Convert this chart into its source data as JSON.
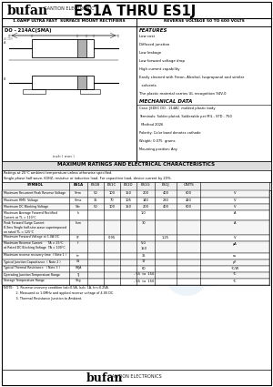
{
  "title_bufan": "bufan",
  "title_gantion": "GANTION ELECTRONIC",
  "title_model": "ES1A THRU ES1J",
  "subtitle_left": "1.0AMP ULTRA FAST  SURFACE MOUNT RECTIFIERS",
  "subtitle_right": "REVERSE VOLTAGE 50 TO 600 VOLTS",
  "package": "DO - 214AC(SMA)",
  "features_title": "FEATURES",
  "features": [
    "Low cost",
    "Diffused junction",
    "Low leakage",
    "Low forward voltage drop",
    "High current capability",
    "Easily cleaned with Freon, Alcohol, Isopropanol and similar",
    "  solvents",
    "The plastic material carries UL recognition 94V-0"
  ],
  "mech_title": "MECHANICAL DATA",
  "mech": [
    "Case: JEDEC DO - 214AC  molded plastic body",
    "Terminals: Solder plated, Solderable per MIL - STD - 750",
    "  Method 2026",
    "Polarity: Color band denotes cathode",
    "Weight: 0.075  grams",
    "Mounting position: Any"
  ],
  "table_title": "MAXIMUM RATINGS AND ELECTRICAL CHARACTERISTICS",
  "table_note1": "Ratings at 25°C ambient temperature unless otherwise specified.",
  "table_note2": "Single phase half wave, 60HZ, resistive or inductive load. For capacitive load, device current by 20%.",
  "col_headers": [
    "SYMBOL",
    "ES1A",
    "ES1B",
    "ES1C",
    "ES1D",
    "ES1G",
    "ES1J",
    "UNITS"
  ],
  "rows": [
    [
      "Maximum Recurrent Peak Reverse Voltage",
      "Vrrm",
      "50",
      "100",
      "150",
      "200",
      "400",
      "600",
      "V"
    ],
    [
      "Maximum RMS  Voltage",
      "Vrms",
      "35",
      "70",
      "105",
      "140",
      "280",
      "420",
      "V"
    ],
    [
      "Maximum DC Blocking Voltage",
      "Vdc",
      "50",
      "100",
      "150",
      "200",
      "400",
      "600",
      "V"
    ],
    [
      "Maximum Average Forward Rectified\nCurrent at TL = 110°C",
      "Io",
      "",
      "",
      "1.0",
      "",
      "",
      "",
      "A"
    ],
    [
      "Peak Forward Surge Current\n8.3ms Single half-sine-wave superimposed\non rated TL = 125°C",
      "Ifsm",
      "",
      "",
      "30",
      "",
      "",
      "",
      "A"
    ],
    [
      "Maximum Forward Voltage at 1.0A DC",
      "Vf",
      "",
      "0.95",
      "",
      "",
      "1.25",
      "",
      "V"
    ],
    [
      "Maximum Reverse Current      TA = 25°C\nat Rated DC Blocking Voltage  TA = 100°C",
      "Ir",
      "",
      "",
      "5.0\n150",
      "",
      "",
      "",
      "μA"
    ],
    [
      "Maximum reverse recovery time  ( Note 1 )",
      "trr",
      "",
      "",
      "35",
      "",
      "",
      "",
      "ns"
    ],
    [
      "Typical Junction Capacitance  ( Note 2 )",
      "Cd",
      "",
      "",
      "17",
      "",
      "",
      "",
      "pF"
    ],
    [
      "Typical Thermal Resistance   ( Note 3 )",
      "RθJA",
      "",
      "",
      "60",
      "",
      "",
      "",
      "°C/W"
    ],
    [
      "Operating Junction Temperature Range",
      "TJ",
      "",
      "",
      "- 55  to  150",
      "",
      "",
      "",
      "°C"
    ],
    [
      "Storage Temperature Range",
      "Tstg",
      "",
      "",
      "- 55  to  150",
      "",
      "",
      "",
      "°C"
    ]
  ],
  "notes": [
    "NOTE:   1. Reverse recovery condition Isd=0.5A, Isd= 1A, Irr=0.25A.",
    "            2. Measured at 1.0MHz and applied reverse voltage of 4.0V DC.",
    "            3. Thermal Resistance Junction to Ambient."
  ],
  "footer_bufan": "bufan",
  "footer_gantion": "GANTION ELECTRONICS",
  "bg_color": "#ffffff",
  "logo_color_blue": "#5599cc",
  "logo_color_orange": "#ddaa44"
}
